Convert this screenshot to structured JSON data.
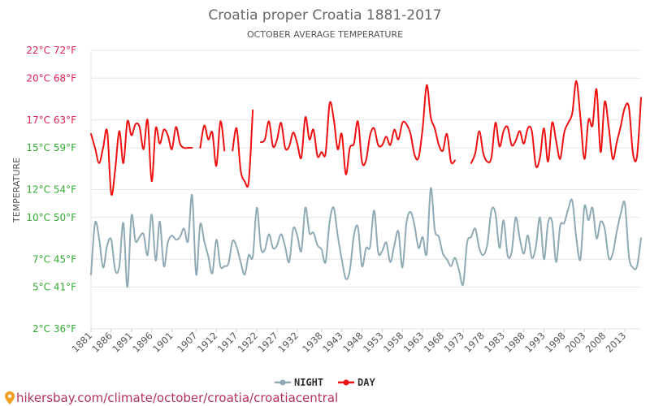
{
  "chart_data": {
    "type": "line",
    "title": "Croatia proper Croatia 1881-2017",
    "subtitle": "OCTOBER AVERAGE TEMPERATURE",
    "ylabel": "TEMPERATURE",
    "x_range": [
      1881,
      2017
    ],
    "ylim": [
      2,
      22
    ],
    "y_ticks": [
      {
        "value": 2,
        "label": "2°C 36°F",
        "color": "#33aa33"
      },
      {
        "value": 5,
        "label": "5°C 41°F",
        "color": "#33aa33"
      },
      {
        "value": 7,
        "label": "7°C 45°F",
        "color": "#33aa33"
      },
      {
        "value": 10,
        "label": "10°C 50°F",
        "color": "#33aa33"
      },
      {
        "value": 12,
        "label": "12°C 54°F",
        "color": "#33aa33"
      },
      {
        "value": 15,
        "label": "15°C 59°F",
        "color": "#33aa33"
      },
      {
        "value": 17,
        "label": "17°C 63°F",
        "color": "#dd2255"
      },
      {
        "value": 20,
        "label": "20°C 68°F",
        "color": "#dd2255"
      },
      {
        "value": 22,
        "label": "22°C 72°F",
        "color": "#dd2255"
      }
    ],
    "x_tick_labels": [
      "1881",
      "1886",
      "1891",
      "1896",
      "1901",
      "1907",
      "1912",
      "1917",
      "1922",
      "1927",
      "1932",
      "1938",
      "1943",
      "1948",
      "1953",
      "1958",
      "1963",
      "1968",
      "1973",
      "1978",
      "1983",
      "1988",
      "1993",
      "1998",
      "2003",
      "2008",
      "2013"
    ],
    "grid": true,
    "legend_position": "bottom",
    "series": [
      {
        "name": "NIGHT",
        "color": "#8faab5",
        "segments": [
          {
            "x": [
              1881,
              1882,
              1883,
              1884,
              1885,
              1886,
              1887,
              1888,
              1889,
              1890,
              1891,
              1892,
              1893,
              1894,
              1895,
              1896,
              1897,
              1898,
              1899,
              1900,
              1901,
              1902,
              1903,
              1904,
              1905,
              1906,
              1907,
              1908,
              1909,
              1910,
              1911,
              1912,
              1913,
              1914,
              1915,
              1916,
              1917,
              1918,
              1919,
              1920,
              1921,
              1922,
              1923,
              1924,
              1925,
              1926,
              1927,
              1928,
              1929,
              1930,
              1931,
              1932,
              1933,
              1934,
              1935,
              1936,
              1937,
              1938,
              1939,
              1940,
              1941,
              1942,
              1943,
              1944,
              1945,
              1946,
              1947,
              1948,
              1949,
              1950,
              1951,
              1952,
              1953,
              1954,
              1955,
              1956,
              1957,
              1958,
              1959,
              1960,
              1961,
              1962,
              1963,
              1964,
              1965,
              1966,
              1967,
              1968,
              1969,
              1970,
              1971,
              1972,
              1973,
              1974,
              1975,
              1976,
              1977,
              1978,
              1979,
              1980,
              1981,
              1982,
              1983,
              1984,
              1985,
              1986,
              1987,
              1988,
              1989,
              1990,
              1991,
              1992,
              1993,
              1994,
              1995,
              1996,
              1997,
              1998,
              1999,
              2000,
              2001,
              2002,
              2003,
              2004,
              2005,
              2006,
              2007,
              2008,
              2009,
              2010,
              2011,
              2012,
              2013,
              2014,
              2015,
              2016,
              2017
            ],
            "y": [
              5.9,
              9.6,
              8.5,
              6.4,
              8.0,
              8.4,
              6.2,
              6.5,
              9.6,
              5.0,
              10.1,
              8.3,
              8.6,
              8.8,
              7.3,
              10.2,
              6.9,
              9.7,
              6.5,
              8.2,
              8.7,
              8.4,
              8.6,
              9.2,
              8.3,
              11.6,
              5.9,
              9.5,
              8.3,
              7.2,
              6.0,
              8.4,
              6.5,
              6.5,
              6.7,
              8.3,
              7.9,
              6.8,
              5.9,
              7.3,
              7.2,
              10.7,
              7.8,
              7.7,
              8.8,
              7.8,
              8.0,
              8.8,
              7.9,
              6.8,
              9.2,
              8.7,
              7.6,
              10.7,
              8.9,
              8.9,
              8.0,
              7.7,
              6.8,
              9.7,
              10.7,
              8.7,
              7.0,
              5.6,
              6.2,
              8.7,
              9.3,
              6.5,
              7.8,
              7.9,
              10.5,
              7.5,
              7.6,
              8.2,
              6.8,
              8.0,
              9.0,
              6.4,
              9.6,
              10.4,
              9.4,
              7.8,
              8.6,
              7.4,
              12.1,
              9.1,
              8.6,
              7.4,
              7.0,
              6.5,
              7.1,
              6.2,
              5.2,
              8.2,
              8.6,
              9.2,
              7.8,
              7.3,
              8.1,
              10.5,
              10.3,
              7.8,
              9.8,
              7.3,
              7.5,
              10.0,
              8.5,
              7.4,
              8.7,
              7.1,
              7.9,
              10.0,
              7.0,
              9.6,
              9.7,
              6.8,
              9.4,
              9.6,
              10.6,
              11.2,
              8.5,
              7.0,
              10.8,
              9.8,
              10.7,
              8.5,
              9.7,
              9.2,
              7.1,
              7.4,
              9.0,
              10.3,
              11.0,
              7.2,
              6.4,
              6.5,
              8.5
            ]
          }
        ]
      },
      {
        "name": "DAY",
        "color": "#ee1111",
        "segments": [
          {
            "x": [
              1881,
              1882,
              1883,
              1884,
              1885,
              1886,
              1887,
              1888,
              1889,
              1890,
              1891,
              1892,
              1893,
              1894,
              1895,
              1896,
              1897,
              1898,
              1899,
              1900,
              1901,
              1902,
              1903,
              1904,
              1905,
              1906
            ],
            "y": [
              16.0,
              15.0,
              13.9,
              15.0,
              16.2,
              11.7,
              13.5,
              16.2,
              13.9,
              16.9,
              15.9,
              16.7,
              16.5,
              14.9,
              17.0,
              12.6,
              16.4,
              15.3,
              16.3,
              15.9,
              14.9,
              16.5,
              15.3,
              15.0,
              15.0,
              15.0
            ]
          },
          {
            "x": [
              1908,
              1909,
              1910,
              1911,
              1912,
              1913,
              1914
            ],
            "y": [
              15.0,
              16.6,
              15.6,
              16.1,
              13.7,
              16.9,
              14.8
            ]
          },
          {
            "x": [
              1916,
              1917,
              1918,
              1919,
              1920,
              1921
            ],
            "y": [
              14.8,
              16.4,
              13.4,
              12.6,
              12.6,
              17.7
            ]
          },
          {
            "x": [
              1923,
              1924,
              1925,
              1926,
              1927,
              1928,
              1929,
              1930,
              1931,
              1932,
              1933,
              1934,
              1935,
              1936,
              1937,
              1938,
              1939,
              1940,
              1941,
              1942,
              1943,
              1944,
              1945,
              1946,
              1947,
              1948,
              1949,
              1950,
              1951,
              1952,
              1953,
              1954,
              1955,
              1956,
              1957,
              1958,
              1959,
              1960,
              1961,
              1962,
              1963,
              1964,
              1965,
              1966,
              1967,
              1968,
              1969,
              1970,
              1971
            ],
            "y": [
              15.4,
              15.6,
              16.9,
              15.1,
              15.6,
              16.8,
              15.0,
              15.1,
              16.1,
              15.3,
              14.3,
              17.2,
              15.6,
              16.3,
              14.4,
              14.7,
              14.6,
              18.2,
              17.1,
              14.9,
              16.0,
              13.1,
              15.0,
              15.3,
              16.9,
              14.0,
              14.1,
              15.9,
              16.4,
              15.2,
              15.2,
              15.8,
              15.2,
              16.3,
              15.6,
              16.8,
              16.7,
              16.0,
              14.5,
              14.3,
              16.4,
              19.5,
              17.2,
              16.4,
              15.2,
              14.8,
              16.0,
              14.0,
              14.1
            ]
          },
          {
            "x": [
              1975,
              1976,
              1977,
              1978,
              1979,
              1980,
              1981,
              1982,
              1983,
              1984,
              1985,
              1986,
              1987,
              1988,
              1989,
              1990,
              1991,
              1992,
              1993,
              1994,
              1995,
              1996,
              1997,
              1998,
              1999,
              2000,
              2001,
              2002,
              2003,
              2004,
              2005,
              2006,
              2007,
              2008,
              2009,
              2010,
              2011,
              2012,
              2013,
              2014,
              2015,
              2016,
              2017
            ],
            "y": [
              13.9,
              14.6,
              16.2,
              14.6,
              14.0,
              14.3,
              16.8,
              15.1,
              16.2,
              16.5,
              15.2,
              15.5,
              16.2,
              15.3,
              16.4,
              16.2,
              13.7,
              14.3,
              16.4,
              14.0,
              16.8,
              15.5,
              14.2,
              16.1,
              16.8,
              17.5,
              19.8,
              17.2,
              14.2,
              17.0,
              16.6,
              19.2,
              14.7,
              18.3,
              16.5,
              14.2,
              15.4,
              16.6,
              17.9,
              17.9,
              14.6,
              14.4,
              18.6
            ]
          }
        ]
      }
    ]
  },
  "legend": {
    "night_label": "NIGHT",
    "day_label": "DAY"
  },
  "footer": {
    "text": "hikersbay.com/climate/october/croatia/croatiacentral"
  }
}
